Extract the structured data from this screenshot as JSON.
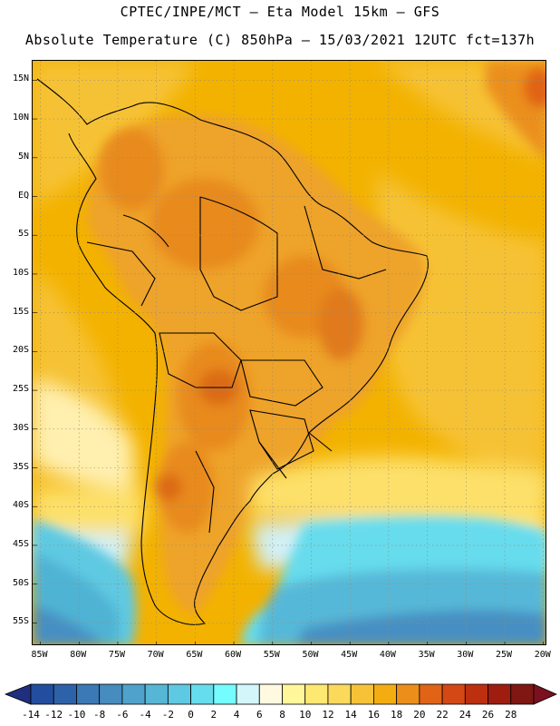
{
  "title": {
    "line1": "CPTEC/INPE/MCT –  Eta Model 15km – GFS",
    "line2": "Absolute Temperature (C) 850hPa – 15/03/2021 12UTC fct=137h"
  },
  "map": {
    "lat_labels": [
      "15N",
      "10N",
      "5N",
      "EQ",
      "5S",
      "10S",
      "15S",
      "20S",
      "25S",
      "30S",
      "35S",
      "40S",
      "45S",
      "50S",
      "55S"
    ],
    "lon_labels": [
      "85W",
      "80W",
      "75W",
      "70W",
      "65W",
      "60W",
      "55W",
      "50W",
      "45W",
      "40W",
      "35W",
      "30W",
      "25W",
      "20W"
    ],
    "extent": {
      "lon_min": -86,
      "lon_max": -19.5,
      "lat_min": -58,
      "lat_max": 17.5
    },
    "fields": {
      "ocean_warm": "#f2b300",
      "land_hot": "#e8921e",
      "land_warm": "#f0a42a",
      "cold_south": "#45c2dc"
    }
  },
  "colorbar": {
    "labels": [
      "-14",
      "-12",
      "-10",
      "-8",
      "-6",
      "-4",
      "-2",
      "0",
      "2",
      "4",
      "6",
      "8",
      "10",
      "12",
      "14",
      "16",
      "18",
      "20",
      "22",
      "24",
      "26",
      "28"
    ],
    "under_color": "#1f2f7e",
    "over_color": "#7a1020",
    "colors": [
      "#234ea0",
      "#2e62a8",
      "#3a79b4",
      "#468cbe",
      "#4fa3ca",
      "#57b6d6",
      "#5ec9e2",
      "#66dced",
      "#74fcff",
      "#d2f6fa",
      "#fff9e0",
      "#fff79a",
      "#fde872",
      "#fbd95a",
      "#f6c338",
      "#f3ad10",
      "#eb8f1a",
      "#e06316",
      "#d44816",
      "#bd300f",
      "#9e1d10",
      "#7f1712"
    ]
  }
}
